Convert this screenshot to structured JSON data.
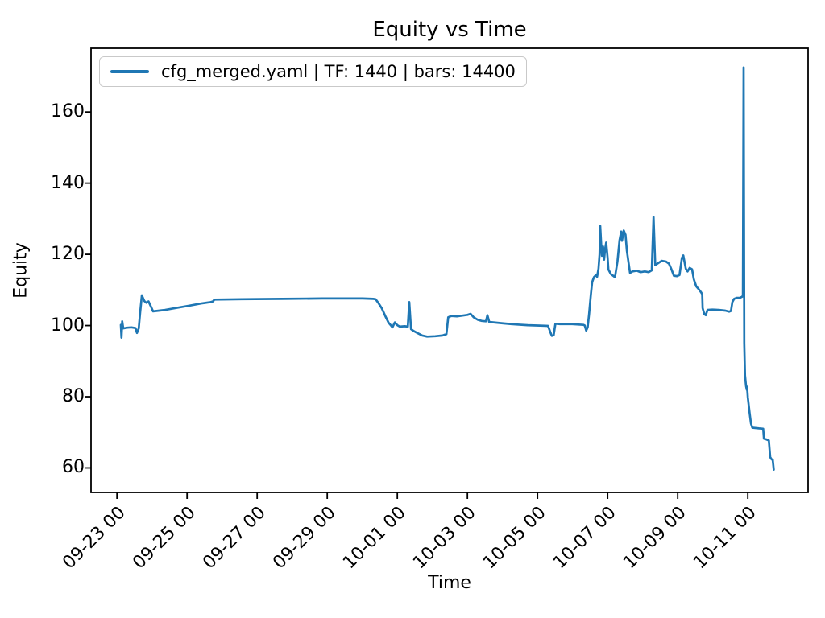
{
  "figure": {
    "title": "Equity vs Time",
    "xlabel": "Time",
    "ylabel": "Equity",
    "background_color": "#ffffff",
    "axes_edge_color": "#000000"
  },
  "legend": {
    "position": "upper-left",
    "entries": [
      {
        "label": "cfg_merged.yaml | TF: 1440 | bars: 14400",
        "color": "#1f77b4"
      }
    ]
  },
  "chart_data": {
    "type": "line",
    "title": "Equity vs Time",
    "xlabel": "Time",
    "ylabel": "Equity",
    "grid": false,
    "legend_position": "upper-left",
    "line_color": "#1f77b4",
    "x_unit": "days relative to tick 09-23 00",
    "xlim": [
      -0.74,
      19.72
    ],
    "ylim": [
      53.1,
      177.9
    ],
    "yticks": [
      60,
      80,
      100,
      120,
      140,
      160
    ],
    "xticks": [
      {
        "d": 0,
        "label": "09-23 00"
      },
      {
        "d": 2,
        "label": "09-25 00"
      },
      {
        "d": 4,
        "label": "09-27 00"
      },
      {
        "d": 6,
        "label": "09-29 00"
      },
      {
        "d": 8,
        "label": "10-01 00"
      },
      {
        "d": 10,
        "label": "10-03 00"
      },
      {
        "d": 12,
        "label": "10-05 00"
      },
      {
        "d": 14,
        "label": "10-07 00"
      },
      {
        "d": 16,
        "label": "10-09 00"
      },
      {
        "d": 18,
        "label": "10-11 00"
      }
    ],
    "series": [
      {
        "name": "cfg_merged.yaml | TF: 1440 | bars: 14400",
        "color": "#1f77b4",
        "points": [
          [
            0.11,
            100.2
          ],
          [
            0.13,
            96.6
          ],
          [
            0.15,
            101.2
          ],
          [
            0.18,
            99.2
          ],
          [
            0.3,
            99.4
          ],
          [
            0.41,
            99.5
          ],
          [
            0.53,
            99.3
          ],
          [
            0.57,
            97.9
          ],
          [
            0.62,
            99.2
          ],
          [
            0.66,
            103.5
          ],
          [
            0.71,
            108.5
          ],
          [
            0.78,
            106.9
          ],
          [
            0.84,
            106.4
          ],
          [
            0.9,
            106.8
          ],
          [
            0.97,
            105.3
          ],
          [
            1.03,
            104.0
          ],
          [
            1.38,
            104.4
          ],
          [
            1.72,
            105.0
          ],
          [
            2.07,
            105.6
          ],
          [
            2.41,
            106.2
          ],
          [
            2.67,
            106.6
          ],
          [
            2.74,
            106.8
          ],
          [
            2.78,
            107.3
          ],
          [
            3.56,
            107.4
          ],
          [
            4.71,
            107.5
          ],
          [
            5.86,
            107.6
          ],
          [
            7.01,
            107.6
          ],
          [
            7.31,
            107.5
          ],
          [
            7.38,
            107.4
          ],
          [
            7.47,
            106.2
          ],
          [
            7.56,
            104.8
          ],
          [
            7.66,
            102.6
          ],
          [
            7.75,
            100.8
          ],
          [
            7.82,
            100.0
          ],
          [
            7.86,
            99.5
          ],
          [
            7.93,
            100.9
          ],
          [
            8.0,
            100.1
          ],
          [
            8.07,
            99.7
          ],
          [
            8.21,
            99.8
          ],
          [
            8.3,
            99.7
          ],
          [
            8.34,
            106.6
          ],
          [
            8.39,
            99.0
          ],
          [
            8.46,
            98.5
          ],
          [
            8.57,
            97.9
          ],
          [
            8.71,
            97.2
          ],
          [
            8.85,
            96.9
          ],
          [
            9.08,
            97.0
          ],
          [
            9.29,
            97.2
          ],
          [
            9.4,
            97.6
          ],
          [
            9.45,
            102.3
          ],
          [
            9.54,
            102.7
          ],
          [
            9.7,
            102.6
          ],
          [
            9.86,
            102.8
          ],
          [
            10.0,
            103.0
          ],
          [
            10.09,
            103.3
          ],
          [
            10.18,
            102.3
          ],
          [
            10.3,
            101.6
          ],
          [
            10.41,
            101.3
          ],
          [
            10.53,
            101.2
          ],
          [
            10.57,
            102.9
          ],
          [
            10.62,
            101.0
          ],
          [
            10.74,
            100.9
          ],
          [
            11.03,
            100.6
          ],
          [
            11.38,
            100.3
          ],
          [
            11.72,
            100.1
          ],
          [
            12.07,
            100.0
          ],
          [
            12.3,
            99.9
          ],
          [
            12.37,
            98.0
          ],
          [
            12.41,
            97.1
          ],
          [
            12.46,
            97.3
          ],
          [
            12.51,
            100.5
          ],
          [
            12.64,
            100.4
          ],
          [
            12.99,
            100.4
          ],
          [
            13.31,
            100.2
          ],
          [
            13.35,
            100.0
          ],
          [
            13.39,
            98.6
          ],
          [
            13.43,
            99.5
          ],
          [
            13.47,
            103.0
          ],
          [
            13.52,
            108.5
          ],
          [
            13.56,
            112.2
          ],
          [
            13.61,
            113.6
          ],
          [
            13.68,
            114.3
          ],
          [
            13.7,
            113.7
          ],
          [
            13.74,
            116.0
          ],
          [
            13.77,
            120.0
          ],
          [
            13.79,
            128.0
          ],
          [
            13.82,
            122.0
          ],
          [
            13.84,
            119.6
          ],
          [
            13.87,
            122.2
          ],
          [
            13.9,
            118.5
          ],
          [
            13.93,
            121.5
          ],
          [
            13.96,
            123.3
          ],
          [
            14.0,
            119.0
          ],
          [
            14.02,
            115.8
          ],
          [
            14.09,
            114.5
          ],
          [
            14.21,
            113.6
          ],
          [
            14.28,
            118.0
          ],
          [
            14.34,
            124.0
          ],
          [
            14.39,
            126.4
          ],
          [
            14.41,
            123.8
          ],
          [
            14.46,
            126.7
          ],
          [
            14.51,
            125.5
          ],
          [
            14.55,
            121.0
          ],
          [
            14.6,
            117.5
          ],
          [
            14.64,
            114.8
          ],
          [
            14.71,
            115.2
          ],
          [
            14.83,
            115.4
          ],
          [
            14.94,
            115.0
          ],
          [
            15.06,
            115.2
          ],
          [
            15.17,
            115.0
          ],
          [
            15.26,
            115.5
          ],
          [
            15.31,
            130.5
          ],
          [
            15.36,
            117.0
          ],
          [
            15.45,
            117.6
          ],
          [
            15.54,
            118.2
          ],
          [
            15.66,
            118.0
          ],
          [
            15.75,
            117.4
          ],
          [
            15.82,
            115.8
          ],
          [
            15.89,
            114.0
          ],
          [
            15.98,
            113.9
          ],
          [
            16.05,
            114.2
          ],
          [
            16.12,
            119.0
          ],
          [
            16.16,
            119.7
          ],
          [
            16.23,
            116.0
          ],
          [
            16.28,
            115.2
          ],
          [
            16.34,
            116.2
          ],
          [
            16.41,
            115.8
          ],
          [
            16.46,
            113.0
          ],
          [
            16.53,
            111.0
          ],
          [
            16.6,
            110.2
          ],
          [
            16.67,
            109.3
          ],
          [
            16.7,
            108.8
          ],
          [
            16.71,
            104.9
          ],
          [
            16.76,
            103.2
          ],
          [
            16.8,
            102.9
          ],
          [
            16.85,
            104.4
          ],
          [
            16.99,
            104.5
          ],
          [
            17.17,
            104.4
          ],
          [
            17.36,
            104.2
          ],
          [
            17.47,
            103.9
          ],
          [
            17.52,
            104.1
          ],
          [
            17.56,
            106.6
          ],
          [
            17.61,
            107.5
          ],
          [
            17.68,
            107.8
          ],
          [
            17.77,
            107.8
          ],
          [
            17.84,
            108.1
          ],
          [
            17.86,
            108.5
          ],
          [
            17.88,
            172.5
          ],
          [
            17.9,
            95.0
          ],
          [
            17.92,
            86.0
          ],
          [
            17.95,
            83.0
          ],
          [
            17.97,
            82.0
          ],
          [
            17.98,
            82.8
          ],
          [
            18.0,
            79.8
          ],
          [
            18.05,
            75.5
          ],
          [
            18.09,
            72.5
          ],
          [
            18.13,
            71.3
          ],
          [
            18.21,
            71.2
          ],
          [
            18.32,
            71.1
          ],
          [
            18.44,
            71.0
          ],
          [
            18.46,
            68.2
          ],
          [
            18.53,
            68.0
          ],
          [
            18.6,
            67.7
          ],
          [
            18.64,
            63.0
          ],
          [
            18.68,
            62.4
          ],
          [
            18.71,
            62.3
          ],
          [
            18.74,
            59.5
          ]
        ]
      }
    ]
  }
}
